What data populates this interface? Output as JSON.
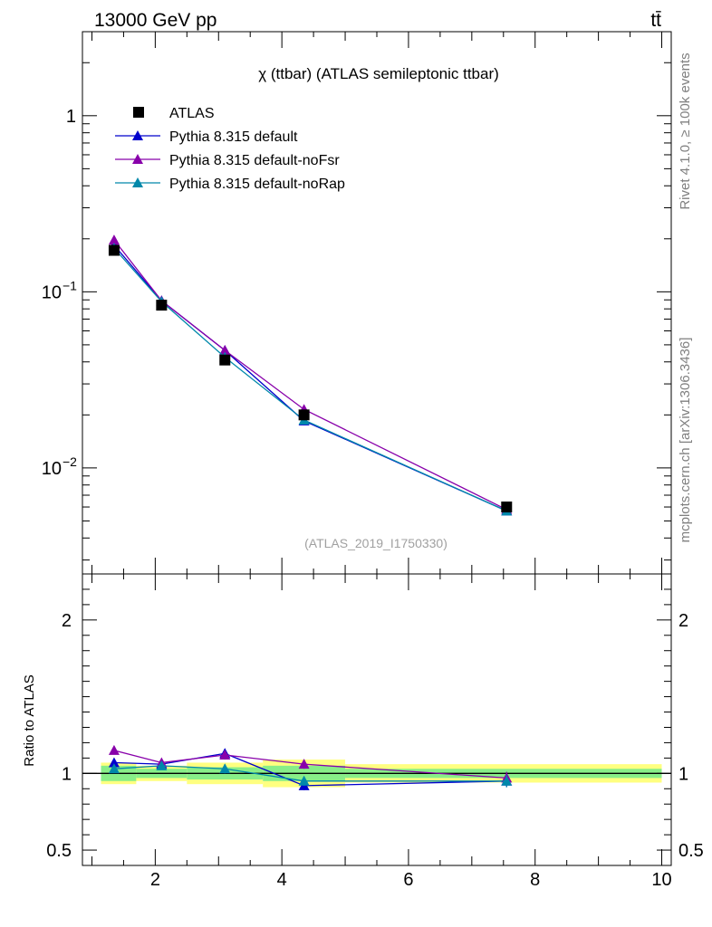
{
  "header": {
    "left": "13000 GeV pp",
    "right": "tt̄"
  },
  "side_labels": {
    "rivet": "Rivet 4.1.0, ≥ 100k events",
    "mcplots": "mcplots.cern.ch [arXiv:1306.3436]"
  },
  "chart_data": {
    "type": "line",
    "title": "χ (ttbar) (ATLAS semileptonic ttbar)",
    "analysis_tag": "(ATLAS_2019_I1750330)",
    "x": [
      1.35,
      2.1,
      3.1,
      4.35,
      7.55
    ],
    "bin_edges": [
      1.0,
      1.7,
      2.5,
      3.7,
      5.0,
      10.0
    ],
    "xlim": [
      0.85,
      10.15
    ],
    "xticks": [
      2,
      4,
      6,
      8,
      10
    ],
    "ylim": [
      0.0025,
      3.0
    ],
    "ylog": true,
    "yticks": [
      {
        "value": 1,
        "label": "1"
      },
      {
        "value": 0.1,
        "label": "10",
        "exp": "−1"
      },
      {
        "value": 0.01,
        "label": "10",
        "exp": "−2"
      }
    ],
    "series": [
      {
        "name": "ATLAS",
        "color": "#000000",
        "marker": "square",
        "values": [
          0.172,
          0.084,
          0.041,
          0.02,
          0.006
        ]
      },
      {
        "name": "Pythia 8.315 default",
        "color": "#0000cc",
        "marker": "triangle",
        "values": [
          0.184,
          0.089,
          0.0465,
          0.0185,
          0.0057
        ]
      },
      {
        "name": "Pythia 8.315 default-noFsr",
        "color": "#8800aa",
        "marker": "triangle",
        "values": [
          0.197,
          0.089,
          0.0465,
          0.0215,
          0.0058
        ]
      },
      {
        "name": "Pythia 8.315 default-noRap",
        "color": "#0088aa",
        "marker": "triangle",
        "values": [
          0.177,
          0.088,
          0.0425,
          0.0187,
          0.0057
        ]
      }
    ],
    "ratio": {
      "ylabel": "Ratio to ATLAS",
      "ylim": [
        0.4,
        2.3
      ],
      "yticks": [
        {
          "value": 0.5,
          "label": "0.5"
        },
        {
          "value": 1,
          "label": "1"
        },
        {
          "value": 2,
          "label": "2"
        }
      ],
      "band_green": [
        0.05,
        0.03,
        0.04,
        0.05,
        0.03
      ],
      "band_yellow": [
        0.07,
        0.05,
        0.07,
        0.09,
        0.06
      ],
      "series": [
        {
          "name": "Pythia 8.315 default",
          "values": [
            1.07,
            1.06,
            1.13,
            0.92,
            0.95
          ],
          "err": [
            0.02,
            0.02,
            0.03,
            0.03,
            0.04
          ]
        },
        {
          "name": "Pythia 8.315 default-noFsr",
          "values": [
            1.15,
            1.07,
            1.12,
            1.06,
            0.97
          ],
          "err": [
            0.02,
            0.02,
            0.03,
            0.03,
            0.04
          ]
        },
        {
          "name": "Pythia 8.315 default-noRap",
          "values": [
            1.03,
            1.05,
            1.03,
            0.95,
            0.95
          ],
          "err": [
            0.02,
            0.02,
            0.03,
            0.03,
            0.04
          ]
        }
      ]
    }
  }
}
